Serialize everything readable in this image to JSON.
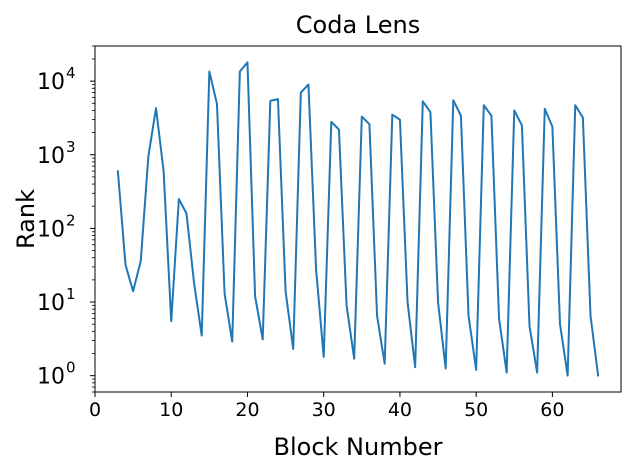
{
  "chart_data": {
    "type": "line",
    "title": "Coda Lens",
    "xlabel": "Block Number",
    "ylabel": "Rank",
    "xscale": "linear",
    "yscale": "log",
    "xlim": [
      0,
      69
    ],
    "ylim": [
      0.6,
      30000
    ],
    "grid": false,
    "legend": "none",
    "x_ticks": [
      {
        "value": 0,
        "label": "0"
      },
      {
        "value": 10,
        "label": "10"
      },
      {
        "value": 20,
        "label": "20"
      },
      {
        "value": 30,
        "label": "30"
      },
      {
        "value": 40,
        "label": "40"
      },
      {
        "value": 50,
        "label": "50"
      },
      {
        "value": 60,
        "label": "60"
      }
    ],
    "y_ticks": [
      {
        "value": 1,
        "base": "10",
        "exp": "0"
      },
      {
        "value": 10,
        "base": "10",
        "exp": "1"
      },
      {
        "value": 100,
        "base": "10",
        "exp": "2"
      },
      {
        "value": 1000,
        "base": "10",
        "exp": "3"
      },
      {
        "value": 10000,
        "base": "10",
        "exp": "4"
      }
    ],
    "series": [
      {
        "color": "#1f77b4",
        "x": [
          3,
          4,
          5,
          6,
          7,
          8,
          9,
          10,
          11,
          12,
          13,
          14,
          15,
          16,
          17,
          18,
          19,
          20,
          21,
          22,
          23,
          24,
          25,
          26,
          27,
          28,
          29,
          30,
          31,
          32,
          33,
          34,
          35,
          36,
          37,
          38,
          39,
          40,
          41,
          42,
          43,
          44,
          45,
          46,
          47,
          48,
          49,
          50,
          51,
          52,
          53,
          54,
          55,
          56,
          57,
          58,
          59,
          60,
          61,
          62,
          63,
          64,
          65,
          66
        ],
        "y": [
          600,
          32,
          14,
          36,
          950,
          4300,
          600,
          5.5,
          250,
          160,
          18,
          3.5,
          13500,
          4900,
          13,
          2.9,
          13500,
          18000,
          12,
          3.1,
          5400,
          5700,
          14,
          2.3,
          7000,
          9000,
          28,
          1.8,
          2800,
          2200,
          9,
          1.7,
          3300,
          2600,
          6.5,
          1.45,
          3500,
          3000,
          10,
          1.3,
          5300,
          3800,
          10,
          1.25,
          5500,
          3400,
          6.5,
          1.2,
          4700,
          3400,
          6,
          1.1,
          4000,
          2500,
          4.7,
          1.1,
          4200,
          2400,
          5,
          1.0,
          4700,
          3200,
          6.5,
          1.0
        ]
      }
    ]
  }
}
